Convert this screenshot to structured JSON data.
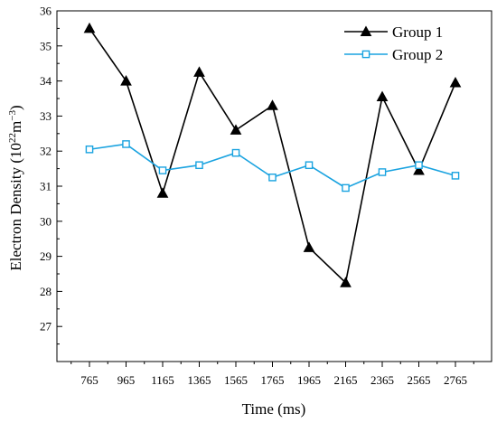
{
  "chart_data": {
    "type": "line",
    "x": [
      "765",
      "965",
      "1165",
      "1365",
      "1565",
      "1765",
      "1965",
      "2165",
      "2365",
      "2565",
      "2765"
    ],
    "xlabel": "Time (ms)",
    "ylabel_main": "Electron Density (10",
    "ylabel_exp1": "22",
    "ylabel_mid": "m",
    "ylabel_exp2": "−3",
    "ylabel_end": ")",
    "ylim": [
      26,
      36
    ],
    "yticks": [
      "27",
      "28",
      "29",
      "30",
      "31",
      "32",
      "33",
      "34",
      "35",
      "36"
    ],
    "legend_position": "top-right",
    "grid": false,
    "series": [
      {
        "name": "Group 1",
        "color": "#000000",
        "marker": "filled-triangle",
        "values": [
          35.5,
          34.0,
          30.8,
          34.25,
          32.6,
          33.3,
          29.25,
          28.25,
          33.55,
          31.45,
          33.95
        ]
      },
      {
        "name": "Group 2",
        "color": "#1aa3e0",
        "marker": "open-square",
        "values": [
          32.05,
          32.2,
          31.45,
          31.6,
          31.95,
          31.25,
          31.6,
          30.95,
          31.4,
          31.6,
          31.3
        ]
      }
    ]
  }
}
